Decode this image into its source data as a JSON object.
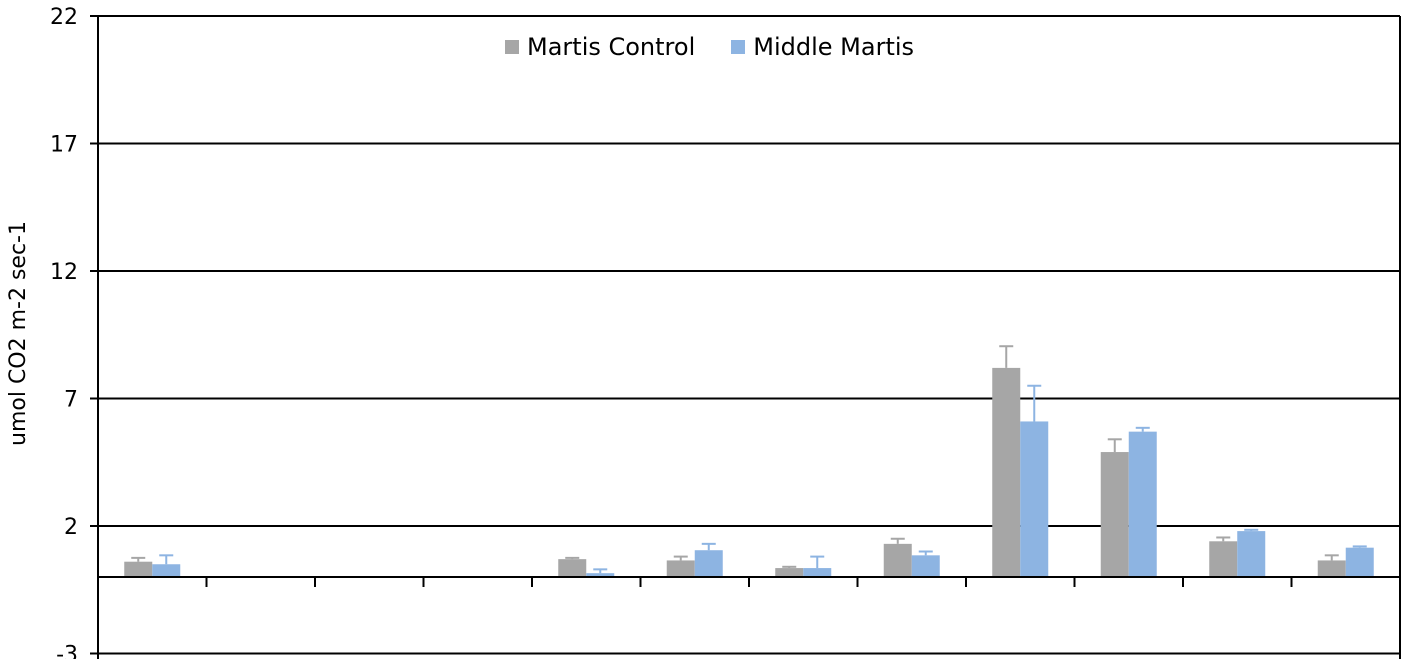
{
  "chart_data": {
    "type": "bar",
    "title": "",
    "xlabel": "",
    "ylabel": "umol CO2 m-2 sec-1",
    "ylim": [
      -3,
      22
    ],
    "yticks": [
      -3,
      2,
      7,
      12,
      17,
      22
    ],
    "ytick_labels": [
      "-3",
      "2",
      "7",
      "12",
      "17",
      "22"
    ],
    "grid": true,
    "legend_position": "top-center",
    "categories": [
      "",
      "",
      "",
      "",
      "",
      "",
      "",
      "",
      "",
      "",
      "",
      ""
    ],
    "series": [
      {
        "name": "Martis Control",
        "color": "#a6a6a6",
        "values": [
          0.6,
          null,
          null,
          null,
          0.7,
          0.65,
          0.35,
          1.3,
          8.2,
          4.9,
          1.4,
          0.65
        ],
        "errors": [
          0.15,
          null,
          null,
          null,
          0.05,
          0.15,
          0.05,
          0.2,
          0.85,
          0.5,
          0.15,
          0.2
        ]
      },
      {
        "name": "Middle Martis",
        "color": "#8db4e2",
        "values": [
          0.5,
          null,
          null,
          null,
          0.15,
          1.05,
          0.35,
          0.85,
          6.1,
          5.7,
          1.8,
          1.15
        ],
        "errors": [
          0.35,
          null,
          null,
          null,
          0.15,
          0.25,
          0.45,
          0.15,
          1.4,
          0.15,
          0.05,
          0.05
        ]
      }
    ]
  }
}
